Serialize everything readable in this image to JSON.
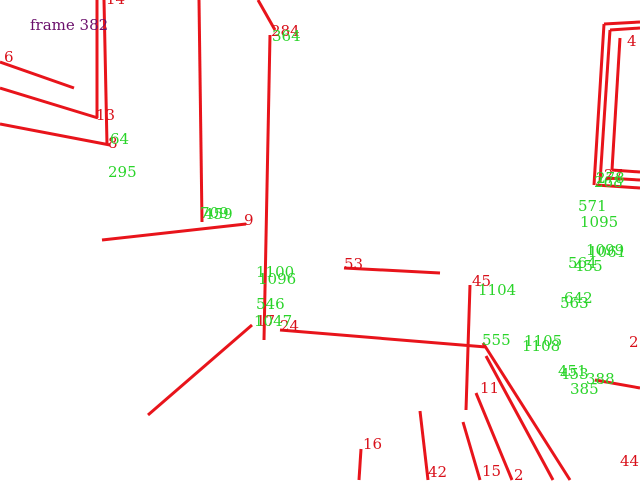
{
  "frame_label": "frame 382",
  "colors": {
    "line": "#e8141b",
    "red_label": "#d8101a",
    "green_label": "#2ad42a",
    "frame": "#6b0f6b"
  },
  "red_labels": [
    "14",
    "6",
    "13",
    "8",
    "9",
    "284",
    "53",
    "45",
    "24",
    "11",
    "16",
    "42",
    "15",
    "2",
    "44",
    "27",
    "17",
    "2",
    "4"
  ],
  "green_labels": [
    "364",
    "295",
    "64",
    "709",
    "459",
    "1100",
    "1096",
    "546",
    "1047",
    "1104",
    "555",
    "1105",
    "1108",
    "571",
    "1095",
    "1099",
    "1061",
    "564",
    "455",
    "642",
    "563",
    "451",
    "453",
    "388",
    "385",
    "268",
    "278"
  ]
}
